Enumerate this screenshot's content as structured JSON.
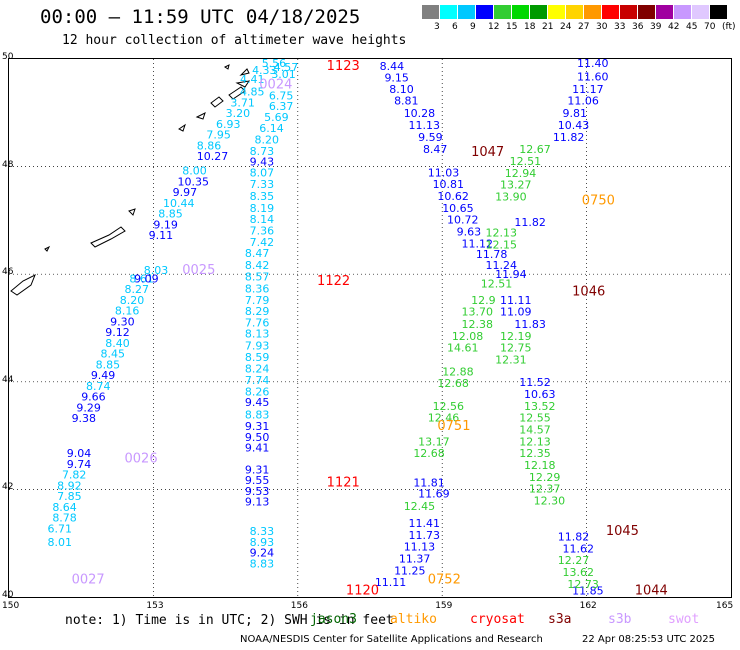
{
  "title": "00:00 – 11:59 UTC 04/18/2025",
  "subtitle": "12 hour collection of altimeter wave heights",
  "scale": {
    "labels": [
      "3",
      "6",
      "9",
      "12",
      "15",
      "18",
      "21",
      "24",
      "27",
      "30",
      "33",
      "36",
      "39",
      "42",
      "45",
      "70",
      "(ft)"
    ],
    "colors": [
      "#808080",
      "#00ffff",
      "#00c8ff",
      "#0000ff",
      "#32cd32",
      "#00d800",
      "#009a00",
      "#ffff00",
      "#ffd400",
      "#ff9900",
      "#ff0000",
      "#c80000",
      "#800000",
      "#a000a0",
      "#c898ff",
      "#e0c8ff",
      "#000000"
    ]
  },
  "axes": {
    "lon_ticks": [
      "150",
      "153",
      "156",
      "159",
      "162",
      "165"
    ],
    "lat_ticks": [
      "50",
      "48",
      "46",
      "44",
      "42",
      "40"
    ]
  },
  "passes": [
    {
      "id": "1123",
      "color": "#ff0000",
      "lon": 156.6,
      "lat": 49.8
    },
    {
      "id": "0024",
      "color": "#c898ff",
      "lon": 155.2,
      "lat": 49.45
    },
    {
      "id": "1047",
      "color": "#800000",
      "lon": 159.6,
      "lat": 48.2
    },
    {
      "id": "0750",
      "color": "#ff9900",
      "lon": 161.9,
      "lat": 47.3
    },
    {
      "id": "0025",
      "color": "#c898ff",
      "lon": 153.6,
      "lat": 46.0
    },
    {
      "id": "1122",
      "color": "#ff0000",
      "lon": 156.4,
      "lat": 45.8
    },
    {
      "id": "1046",
      "color": "#800000",
      "lon": 161.7,
      "lat": 45.6
    },
    {
      "id": "0751",
      "color": "#ff9900",
      "lon": 158.9,
      "lat": 43.1
    },
    {
      "id": "0026",
      "color": "#c898ff",
      "lon": 152.4,
      "lat": 42.5
    },
    {
      "id": "1121",
      "color": "#ff0000",
      "lon": 156.6,
      "lat": 42.05
    },
    {
      "id": "1045",
      "color": "#800000",
      "lon": 162.4,
      "lat": 41.15
    },
    {
      "id": "0752",
      "color": "#ff9900",
      "lon": 158.7,
      "lat": 40.25
    },
    {
      "id": "0027",
      "color": "#c898ff",
      "lon": 151.3,
      "lat": 40.25
    },
    {
      "id": "1120",
      "color": "#ff0000",
      "lon": 157.0,
      "lat": 40.05
    },
    {
      "id": "1044",
      "color": "#800000",
      "lon": 163.0,
      "lat": 40.05
    }
  ],
  "tracks": [
    {
      "color": "#00c8ff",
      "points": [
        [
          "5.56",
          155.25,
          49.85
        ],
        [
          "4.57",
          155.5,
          49.78
        ],
        [
          "4.33",
          155.05,
          49.72
        ],
        [
          "3.01",
          155.45,
          49.65
        ],
        [
          "4.41",
          154.8,
          49.55
        ],
        [
          "4.85",
          154.8,
          49.32
        ],
        [
          "6.75",
          155.4,
          49.25
        ],
        [
          "3.71",
          154.6,
          49.12
        ],
        [
          "6.37",
          155.4,
          49.05
        ],
        [
          "3.20",
          154.5,
          48.92
        ],
        [
          "5.69",
          155.3,
          48.85
        ],
        [
          "6.93",
          154.3,
          48.72
        ],
        [
          "6.14",
          155.2,
          48.64
        ],
        [
          "7.95",
          154.1,
          48.52
        ],
        [
          "8.20",
          155.1,
          48.43
        ],
        [
          "8.86",
          153.9,
          48.32
        ],
        [
          "8.73",
          155.0,
          48.22
        ],
        [
          "8.00",
          153.6,
          47.85
        ],
        [
          "8.07",
          155.0,
          47.82
        ],
        [
          "7.33",
          155.0,
          47.6
        ],
        [
          "8.35",
          155.0,
          47.38
        ],
        [
          "10.44",
          153.2,
          47.25
        ],
        [
          "8.19",
          155.0,
          47.16
        ],
        [
          "8.85",
          153.1,
          47.05
        ],
        [
          "8.14",
          155.0,
          46.95
        ],
        [
          "7.36",
          155.0,
          46.74
        ],
        [
          "7.42",
          155.0,
          46.52
        ],
        [
          "8.03",
          152.8,
          46.0
        ],
        [
          "8.47",
          154.9,
          46.32
        ],
        [
          "8.42",
          154.9,
          46.1
        ],
        [
          "8.61",
          152.5,
          45.85
        ],
        [
          "8.57",
          154.9,
          45.88
        ],
        [
          "8.27",
          152.4,
          45.65
        ],
        [
          "8.36",
          154.9,
          45.66
        ],
        [
          "8.20",
          152.3,
          45.45
        ],
        [
          "7.79",
          154.9,
          45.45
        ],
        [
          "8.16",
          152.2,
          45.25
        ],
        [
          "8.29",
          154.9,
          45.24
        ],
        [
          "7.76",
          154.9,
          45.03
        ],
        [
          "8.40",
          152.0,
          44.65
        ],
        [
          "8.13",
          154.9,
          44.82
        ],
        [
          "8.45",
          151.9,
          44.45
        ],
        [
          "7.93",
          154.9,
          44.6
        ],
        [
          "8.85",
          151.8,
          44.25
        ],
        [
          "8.59",
          154.9,
          44.39
        ],
        [
          "8.24",
          154.9,
          44.17
        ],
        [
          "8.74",
          151.6,
          43.85
        ],
        [
          "7.74",
          154.9,
          43.96
        ],
        [
          "8.26",
          154.9,
          43.75
        ],
        [
          "8.83",
          154.9,
          43.32
        ],
        [
          "7.82",
          151.1,
          42.2
        ],
        [
          "8.92",
          151.0,
          42.0
        ],
        [
          "7.85",
          151.0,
          41.8
        ],
        [
          "8.64",
          150.9,
          41.6
        ],
        [
          "8.78",
          150.9,
          41.4
        ],
        [
          "6.71",
          150.8,
          41.2
        ],
        [
          "8.01",
          150.8,
          40.95
        ],
        [
          "8.33",
          155.0,
          41.15
        ],
        [
          "8.93",
          155.0,
          40.95
        ],
        [
          "8.83",
          155.0,
          40.55
        ]
      ]
    },
    {
      "color": "#0000ff",
      "points": [
        [
          "10.27",
          153.9,
          48.12
        ],
        [
          "9.43",
          155.0,
          48.02
        ],
        [
          "10.35",
          153.5,
          47.65
        ],
        [
          "9.97",
          153.4,
          47.45
        ],
        [
          "9.19",
          153.0,
          46.85
        ],
        [
          "9.11",
          152.9,
          46.65
        ],
        [
          "9.09",
          152.6,
          45.85
        ],
        [
          "9.30",
          152.1,
          45.05
        ],
        [
          "9.12",
          152.0,
          44.85
        ],
        [
          "9.49",
          151.7,
          44.05
        ],
        [
          "9.66",
          151.5,
          43.65
        ],
        [
          "9.29",
          151.4,
          43.45
        ],
        [
          "9.38",
          151.3,
          43.25
        ],
        [
          "9.04",
          151.2,
          42.6
        ],
        [
          "9.74",
          151.2,
          42.4
        ],
        [
          "9.45",
          154.9,
          43.55
        ],
        [
          "9.31",
          154.9,
          43.1
        ],
        [
          "9.50",
          154.9,
          42.9
        ],
        [
          "9.41",
          154.9,
          42.7
        ],
        [
          "9.31",
          154.9,
          42.3
        ],
        [
          "9.55",
          154.9,
          42.1
        ],
        [
          "9.53",
          154.9,
          41.9
        ],
        [
          "9.13",
          154.9,
          41.7
        ],
        [
          "9.24",
          155.0,
          40.75
        ],
        [
          "11.40",
          161.8,
          49.85
        ],
        [
          "8.44",
          157.7,
          49.8
        ],
        [
          "11.60",
          161.8,
          49.6
        ],
        [
          "9.15",
          157.8,
          49.58
        ],
        [
          "11.17",
          161.7,
          49.37
        ],
        [
          "8.10",
          157.9,
          49.37
        ],
        [
          "11.06",
          161.6,
          49.15
        ],
        [
          "8.81",
          158.0,
          49.15
        ],
        [
          "9.81",
          161.5,
          48.92
        ],
        [
          "10.28",
          158.2,
          48.92
        ],
        [
          "10.43",
          161.4,
          48.7
        ],
        [
          "11.13",
          158.3,
          48.7
        ],
        [
          "11.82",
          161.3,
          48.48
        ],
        [
          "9.59",
          158.5,
          48.48
        ],
        [
          "8.47",
          158.6,
          48.25
        ],
        [
          "11.03",
          158.7,
          47.82
        ],
        [
          "10.81",
          158.8,
          47.6
        ],
        [
          "10.62",
          158.9,
          47.38
        ],
        [
          "10.65",
          159.0,
          47.16
        ],
        [
          "10.72",
          159.1,
          46.94
        ],
        [
          "11.82",
          160.5,
          46.9
        ],
        [
          "9.63",
          159.3,
          46.72
        ],
        [
          "11.12",
          159.4,
          46.5
        ],
        [
          "11.78",
          159.7,
          46.3
        ],
        [
          "11.24",
          159.9,
          46.1
        ],
        [
          "11.94",
          160.1,
          45.93
        ],
        [
          "11.11",
          160.2,
          45.45
        ],
        [
          "11.09",
          160.2,
          45.23
        ],
        [
          "11.83",
          160.5,
          45.0
        ],
        [
          "11.52",
          160.6,
          43.92
        ],
        [
          "10.63",
          160.7,
          43.7
        ],
        [
          "11.81",
          158.4,
          42.05
        ],
        [
          "11.69",
          158.5,
          41.85
        ],
        [
          "11.41",
          158.3,
          41.3
        ],
        [
          "11.73",
          158.3,
          41.08
        ],
        [
          "11.13",
          158.2,
          40.86
        ],
        [
          "11.37",
          158.1,
          40.64
        ],
        [
          "11.25",
          158.0,
          40.42
        ],
        [
          "11.11",
          157.6,
          40.2
        ],
        [
          "11.82",
          161.4,
          41.05
        ],
        [
          "11.62",
          161.5,
          40.83
        ],
        [
          "11.85",
          161.7,
          40.05
        ]
      ]
    },
    {
      "color": "#32cd32",
      "points": [
        [
          "12.67",
          160.6,
          48.25
        ],
        [
          "12.51",
          160.4,
          48.03
        ],
        [
          "12.94",
          160.3,
          47.81
        ],
        [
          "13.27",
          160.2,
          47.59
        ],
        [
          "13.90",
          160.1,
          47.37
        ],
        [
          "12.13",
          159.9,
          46.7
        ],
        [
          "12.15",
          159.9,
          46.48
        ],
        [
          "12.51",
          159.8,
          45.75
        ],
        [
          "12.9",
          159.6,
          45.45
        ],
        [
          "13.70",
          159.4,
          45.23
        ],
        [
          "12.38",
          159.4,
          45.0
        ],
        [
          "12.19",
          160.2,
          44.78
        ],
        [
          "12.08",
          159.2,
          44.78
        ],
        [
          "12.75",
          160.2,
          44.56
        ],
        [
          "14.61",
          159.1,
          44.56
        ],
        [
          "12.31",
          160.1,
          44.34
        ],
        [
          "12.88",
          159.0,
          44.12
        ],
        [
          "12.68",
          158.9,
          43.9
        ],
        [
          "13.52",
          160.7,
          43.48
        ],
        [
          "12.56",
          158.8,
          43.48
        ],
        [
          "12.46",
          158.7,
          43.26
        ],
        [
          "12.55",
          160.6,
          43.26
        ],
        [
          "14.57",
          160.6,
          43.04
        ],
        [
          "13.17",
          158.5,
          42.82
        ],
        [
          "12.13",
          160.6,
          42.82
        ],
        [
          "12.68",
          158.4,
          42.6
        ],
        [
          "12.35",
          160.6,
          42.6
        ],
        [
          "12.18",
          160.7,
          42.38
        ],
        [
          "12.45",
          158.2,
          41.62
        ],
        [
          "12.29",
          160.8,
          42.16
        ],
        [
          "12.37",
          160.8,
          41.94
        ],
        [
          "12.30",
          160.9,
          41.72
        ],
        [
          "12.27",
          161.4,
          40.61
        ],
        [
          "13.62",
          161.5,
          40.39
        ],
        [
          "12.73",
          161.6,
          40.17
        ]
      ]
    }
  ],
  "note": "note: 1) Time is in UTC; 2) SWH is in feet",
  "satellites": [
    {
      "name": "jason3",
      "color": "#006400"
    },
    {
      "name": "altiko",
      "color": "#ff9900"
    },
    {
      "name": "cryosat",
      "color": "#ff0000"
    },
    {
      "name": "s3a",
      "color": "#800000"
    },
    {
      "name": "s3b",
      "color": "#c898ff"
    },
    {
      "name": "swot",
      "color": "#e0a0ff"
    }
  ],
  "credit": "NOAA/NESDIS Center for Satellite Applications and Research",
  "timestamp": "22 Apr 08:25:53 UTC 2025"
}
